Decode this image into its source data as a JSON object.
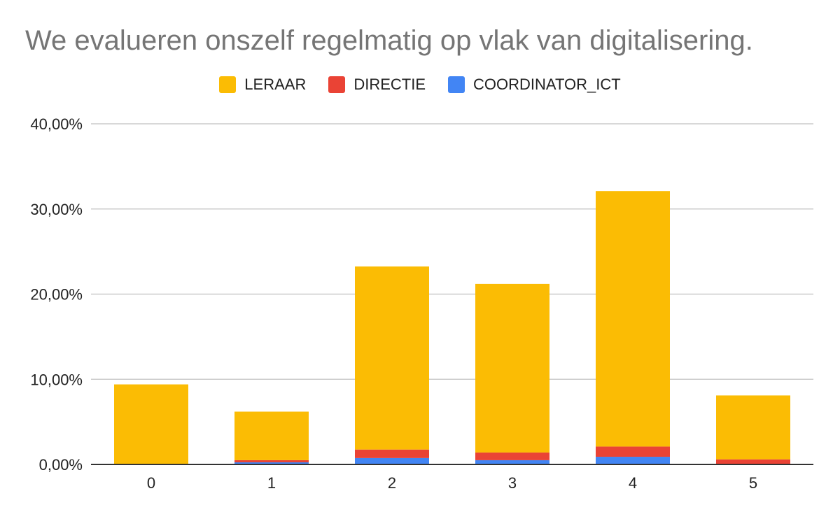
{
  "chart_data": {
    "type": "bar",
    "stacked": true,
    "title": "We evalueren onszelf regelmatig op vlak van digitalisering.",
    "categories": [
      "0",
      "1",
      "2",
      "3",
      "4",
      "5"
    ],
    "series": [
      {
        "name": "COORDINATOR_ICT",
        "color": "#4285f4",
        "values": [
          0.0,
          0.25,
          0.75,
          0.5,
          0.9,
          0.0
        ]
      },
      {
        "name": "DIRECTIE",
        "color": "#ea4335",
        "values": [
          0.0,
          0.25,
          1.0,
          0.9,
          1.2,
          0.6
        ]
      },
      {
        "name": "LERAAR",
        "color": "#fbbc04",
        "values": [
          9.4,
          5.7,
          21.5,
          19.8,
          30.0,
          7.5
        ]
      }
    ],
    "legend_order": [
      "LERAAR",
      "DIRECTIE",
      "COORDINATOR_ICT"
    ],
    "ylim": [
      0,
      40
    ],
    "yticks": [
      "0,00%",
      "10,00%",
      "20,00%",
      "30,00%",
      "40,00%"
    ],
    "grid": true,
    "legend_position": "top"
  }
}
